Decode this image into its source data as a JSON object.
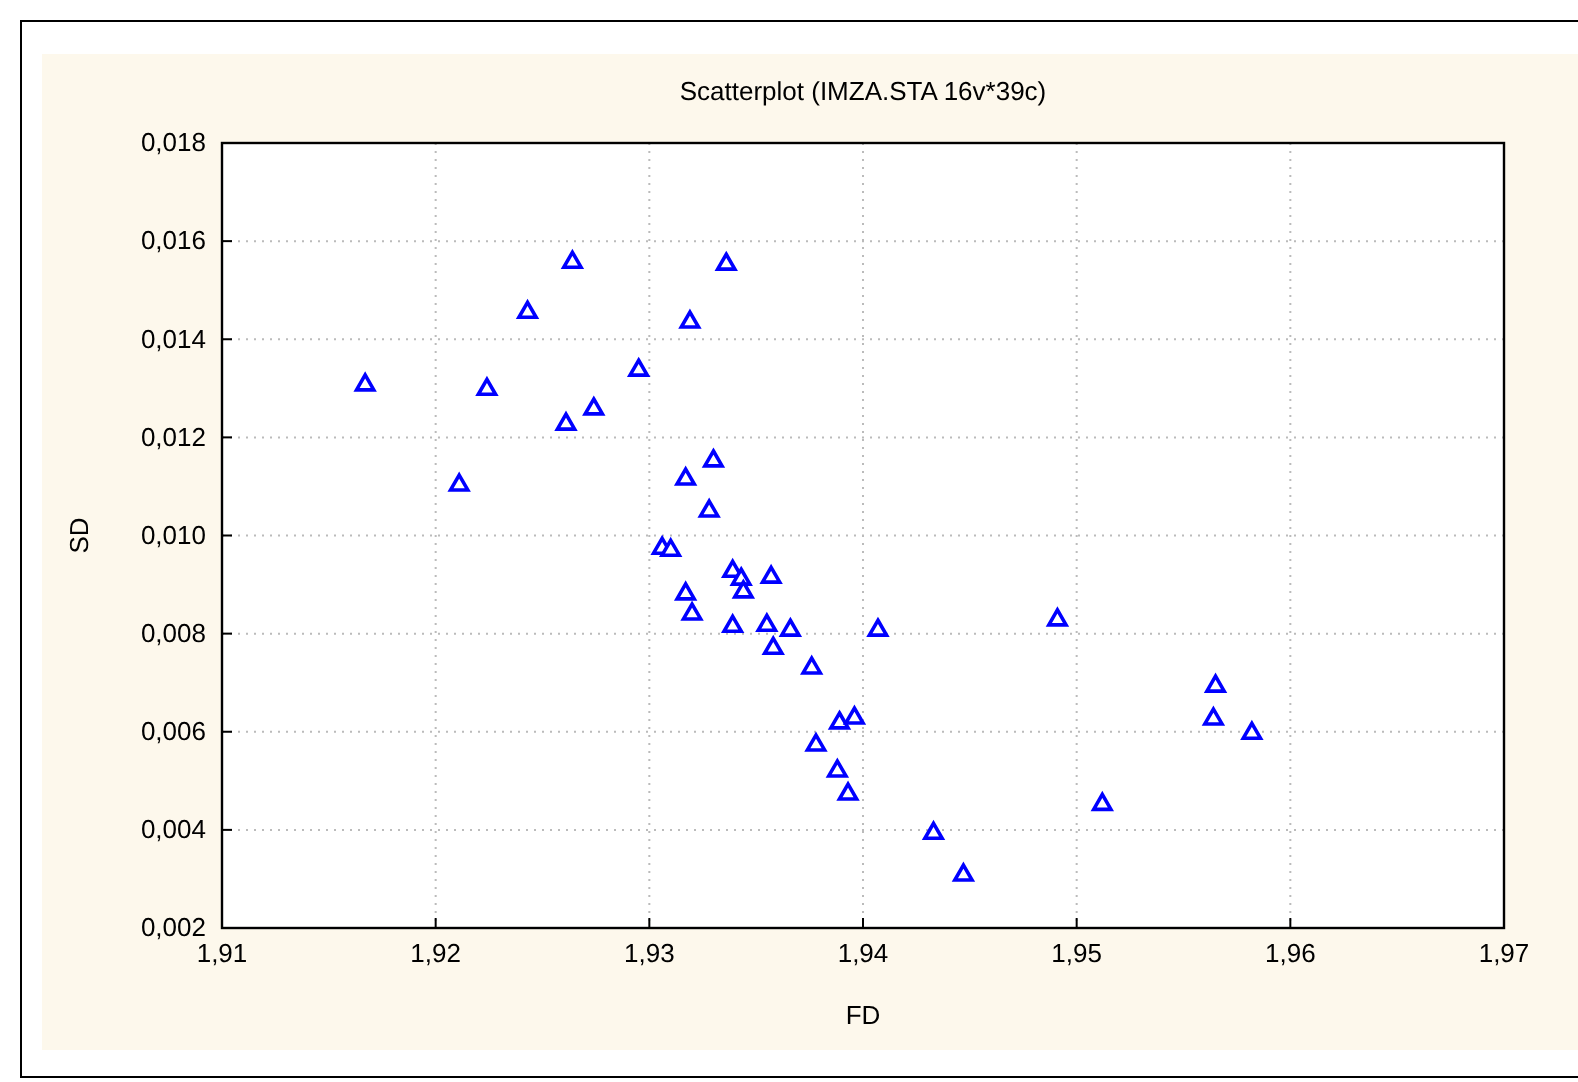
{
  "chart_data": {
    "type": "scatter",
    "title": "Scatterplot (IMZA.STA 16v*39c)",
    "xlabel": "FD",
    "ylabel": "SD",
    "x": [
      1.9167,
      1.9211,
      1.9224,
      1.9243,
      1.9264,
      1.9261,
      1.9274,
      1.9295,
      1.9319,
      1.9336,
      1.9317,
      1.933,
      1.9328,
      1.9306,
      1.931,
      1.9339,
      1.9343,
      1.9344,
      1.9357,
      1.9317,
      1.932,
      1.9339,
      1.9355,
      1.9366,
      1.9358,
      1.9407,
      1.9376,
      1.9491,
      1.9378,
      1.9389,
      1.9396,
      1.9388,
      1.9393,
      1.9433,
      1.9447,
      1.9512,
      1.9565,
      1.9564,
      1.9582
    ],
    "series": [
      {
        "color": "#0000ff",
        "values": [
          0.01307,
          0.01103,
          0.01298,
          0.01455,
          0.01557,
          0.01227,
          0.01258,
          0.01337,
          0.01435,
          0.01553,
          0.01115,
          0.01152,
          0.0105,
          0.00974,
          0.0097,
          0.00927,
          0.00911,
          0.00885,
          0.00915,
          0.00881,
          0.0084,
          0.00815,
          0.00817,
          0.00807,
          0.0077,
          0.00807,
          0.0073,
          0.00828,
          0.00573,
          0.00618,
          0.00628,
          0.0052,
          0.00473,
          0.00393,
          0.00308,
          0.00452,
          0.00693,
          0.00626,
          0.00597
        ]
      }
    ],
    "marker": "triangle",
    "grid": true,
    "xlim": [
      1.91,
      1.97
    ],
    "xticks": [
      {
        "value": 1.91,
        "label": "1,91"
      },
      {
        "value": 1.92,
        "label": "1,92"
      },
      {
        "value": 1.93,
        "label": "1,93"
      },
      {
        "value": 1.94,
        "label": "1,94"
      },
      {
        "value": 1.95,
        "label": "1,95"
      },
      {
        "value": 1.96,
        "label": "1,96"
      },
      {
        "value": 1.97,
        "label": "1,97"
      }
    ],
    "ylim": [
      0.002,
      0.018
    ],
    "yticks": [
      {
        "value": 0.002,
        "label": "0,002"
      },
      {
        "value": 0.004,
        "label": "0,004"
      },
      {
        "value": 0.006,
        "label": "0,006"
      },
      {
        "value": 0.008,
        "label": "0,008"
      },
      {
        "value": 0.01,
        "label": "0,010"
      },
      {
        "value": 0.012,
        "label": "0,012"
      },
      {
        "value": 0.014,
        "label": "0,014"
      },
      {
        "value": 0.016,
        "label": "0,016"
      },
      {
        "value": 0.018,
        "label": "0,018"
      }
    ]
  }
}
